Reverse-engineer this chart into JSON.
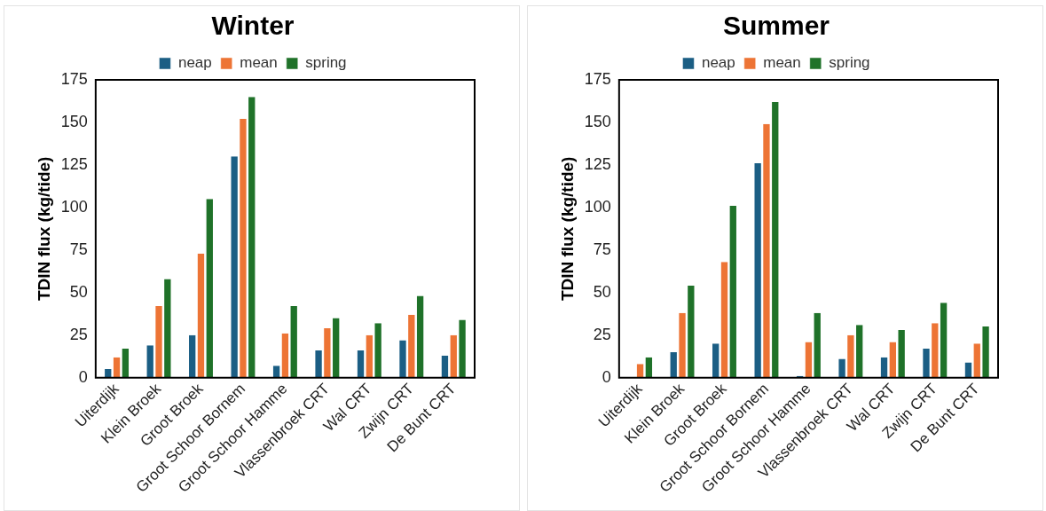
{
  "chart_data": [
    {
      "type": "bar",
      "title": "Winter",
      "ylabel": "TDIN flux (kg/tide)",
      "categories": [
        "Uiterdijk",
        "Klein Broek",
        "Groot Broek",
        "Groot Schoor Bornem",
        "Groot Schoor Hamme",
        "Vlassenbroek CRT",
        "Wal CRT",
        "Zwijn CRT",
        "De Bunt CRT"
      ],
      "series": [
        {
          "name": "neap",
          "color": "#1b5e84",
          "values": [
            5,
            19,
            25,
            130,
            7,
            16,
            16,
            22,
            13
          ]
        },
        {
          "name": "mean",
          "color": "#ed7435",
          "values": [
            12,
            42,
            73,
            152,
            26,
            29,
            25,
            37,
            25
          ]
        },
        {
          "name": "spring",
          "color": "#1f7229",
          "values": [
            17,
            58,
            105,
            165,
            42,
            35,
            32,
            48,
            34
          ]
        }
      ],
      "ylim": [
        0,
        175
      ],
      "yticks": [
        0,
        25,
        50,
        75,
        100,
        125,
        150,
        175
      ],
      "grid": false,
      "legend": "top"
    },
    {
      "type": "bar",
      "title": "Summer",
      "ylabel": "TDIN flux (kg/tide)",
      "categories": [
        "Uiterdijk",
        "Klein Broek",
        "Groot Broek",
        "Groot Schoor Bornem",
        "Groot Schoor Hamme",
        "Vlassenbroek CRT",
        "Wal CRT",
        "Zwijn CRT",
        "De Bunt CRT"
      ],
      "series": [
        {
          "name": "neap",
          "color": "#1b5e84",
          "values": [
            0,
            15,
            20,
            126,
            1,
            11,
            12,
            17,
            9
          ]
        },
        {
          "name": "mean",
          "color": "#ed7435",
          "values": [
            8,
            38,
            68,
            149,
            21,
            25,
            21,
            32,
            20
          ]
        },
        {
          "name": "spring",
          "color": "#1f7229",
          "values": [
            12,
            54,
            101,
            162,
            38,
            31,
            28,
            44,
            30
          ]
        }
      ],
      "ylim": [
        0,
        175
      ],
      "yticks": [
        0,
        25,
        50,
        75,
        100,
        125,
        150,
        175
      ],
      "grid": false,
      "legend": "top"
    }
  ]
}
